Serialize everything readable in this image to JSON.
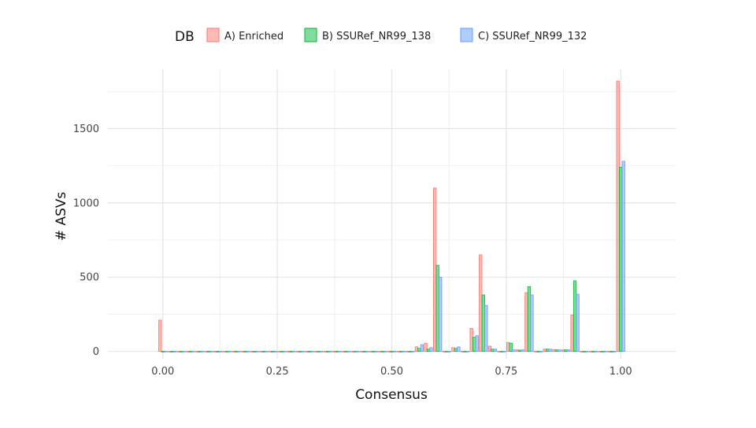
{
  "chart_data": {
    "type": "bar",
    "xlabel": "Consensus",
    "ylabel": "# ASVs",
    "xlim": [
      -0.12,
      1.12
    ],
    "ylim": [
      -50,
      1900
    ],
    "grid": true,
    "legend_placement": "top",
    "legend_title": "DB",
    "x_ticks": [
      0.0,
      0.25,
      0.5,
      0.75,
      1.0
    ],
    "x_tick_labels": [
      "0.00",
      "0.25",
      "0.50",
      "0.75",
      "1.00"
    ],
    "y_ticks": [
      0,
      500,
      1000,
      1500
    ],
    "y_tick_labels": [
      "0",
      "500",
      "1000",
      "1500"
    ],
    "x": [
      0.0,
      0.02,
      0.04,
      0.06,
      0.08,
      0.1,
      0.12,
      0.14,
      0.16,
      0.18,
      0.2,
      0.22,
      0.24,
      0.26,
      0.28,
      0.3,
      0.32,
      0.34,
      0.36,
      0.38,
      0.4,
      0.42,
      0.44,
      0.46,
      0.48,
      0.5,
      0.52,
      0.54,
      0.56,
      0.58,
      0.6,
      0.62,
      0.64,
      0.66,
      0.68,
      0.7,
      0.72,
      0.74,
      0.76,
      0.78,
      0.8,
      0.82,
      0.84,
      0.86,
      0.88,
      0.9,
      0.92,
      0.94,
      0.96,
      0.98,
      1.0
    ],
    "series": [
      {
        "name": "A) Enriched",
        "color": "#F8766D",
        "values": [
          210,
          0,
          0,
          0,
          0,
          0,
          0,
          0,
          0,
          0,
          0,
          0,
          0,
          0,
          0,
          0,
          0,
          0,
          0,
          0,
          0,
          0,
          0,
          0,
          0,
          0,
          0,
          0,
          30,
          55,
          1100,
          0,
          25,
          0,
          155,
          650,
          35,
          0,
          60,
          10,
          395,
          0,
          15,
          12,
          10,
          245,
          0,
          0,
          0,
          0,
          1820
        ]
      },
      {
        "name": "B) SSURef_NR99_138",
        "color": "#00BA38",
        "values": [
          0,
          0,
          0,
          0,
          0,
          0,
          0,
          0,
          0,
          0,
          0,
          0,
          0,
          0,
          0,
          0,
          0,
          0,
          0,
          0,
          0,
          0,
          0,
          0,
          0,
          0,
          0,
          0,
          20,
          15,
          580,
          0,
          20,
          0,
          95,
          380,
          15,
          0,
          55,
          8,
          435,
          0,
          15,
          10,
          10,
          475,
          0,
          0,
          0,
          0,
          1240
        ]
      },
      {
        "name": "C) SSURef_NR99_132",
        "color": "#619CFF",
        "values": [
          0,
          0,
          0,
          0,
          0,
          0,
          0,
          0,
          0,
          0,
          0,
          0,
          0,
          0,
          0,
          0,
          0,
          0,
          0,
          0,
          0,
          0,
          0,
          0,
          0,
          0,
          0,
          0,
          45,
          25,
          500,
          0,
          30,
          0,
          105,
          310,
          15,
          0,
          10,
          10,
          380,
          0,
          15,
          10,
          10,
          385,
          0,
          0,
          0,
          0,
          1280
        ]
      }
    ]
  }
}
